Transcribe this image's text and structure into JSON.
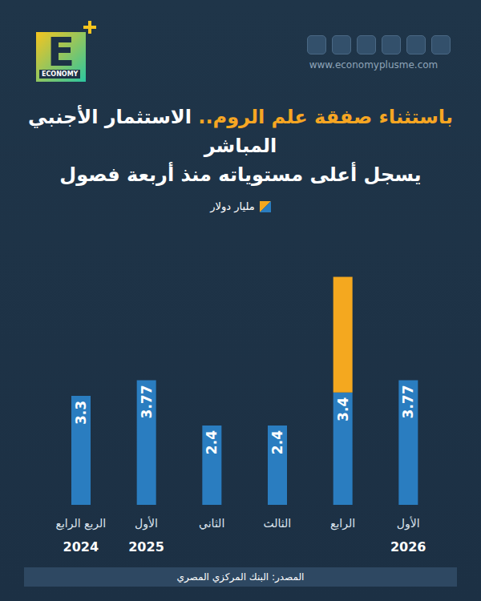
{
  "chart_data": {
    "type": "bar",
    "brand_letter": "E",
    "brand": "ECONOMY",
    "website": "www.economyplusme.com",
    "title_highlight": "باستثناء صفقة علم الروم..",
    "title": [
      "الاستثمار الأجنبي المباشر",
      "يسجل أعلى مستوياته منذ أربعة فصول"
    ],
    "y_label": "مليار دولار",
    "categories": [
      "الربع الرابع",
      "الأول",
      "الثاني",
      "الثالث",
      "الرابع",
      "الأول"
    ],
    "years": [
      "2024",
      "2025",
      null,
      null,
      null,
      "2026"
    ],
    "series": [
      {
        "color": "#2a7dc0",
        "values": [
          3.3,
          3.77,
          2.4,
          2.4,
          3.4,
          3.77
        ]
      },
      {
        "name": "صفقة علم الروم",
        "color": "#f4a81f",
        "values": [
          null,
          null,
          null,
          null,
          3.5,
          null
        ]
      }
    ],
    "ylim": [
      0,
      8
    ],
    "stacked": true,
    "data_labels": true,
    "tick_labels": "x",
    "grid": false,
    "source": "المصدر: البنك المركزي المصري"
  }
}
